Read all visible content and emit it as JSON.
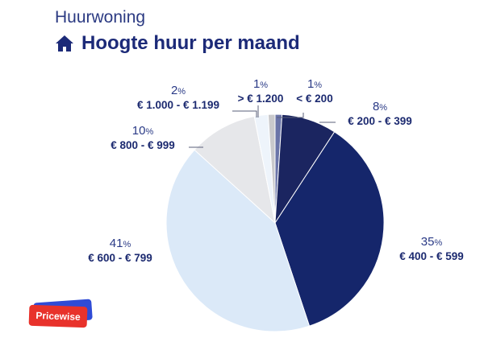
{
  "header": {
    "subtitle": "Huurwoning",
    "title": "Hoogte huur per maand",
    "icon": "home-icon"
  },
  "brand": {
    "logo_text": "Pricewise"
  },
  "colors": {
    "title": "#1c2a78",
    "slices": [
      "#6a74a8",
      "#1b2560",
      "#15266b",
      "#dbe9f8",
      "#e6e7ea",
      "#eef4fb",
      "#c9c9cc"
    ]
  },
  "chart_data": {
    "type": "pie",
    "title": "Hoogte huur per maand",
    "slices": [
      {
        "label": "< € 200",
        "value": 1,
        "pct_text": "1"
      },
      {
        "label": "€ 200 - € 399",
        "value": 8,
        "pct_text": "8"
      },
      {
        "label": "€ 400 - € 599",
        "value": 35,
        "pct_text": "35"
      },
      {
        "label": "€ 600 - € 799",
        "value": 41,
        "pct_text": "41"
      },
      {
        "label": "€ 800 - € 999",
        "value": 10,
        "pct_text": "10"
      },
      {
        "label": "€ 1.000 - € 1.199",
        "value": 2,
        "pct_text": "2"
      },
      {
        "label": "> € 1.200",
        "value": 1,
        "pct_text": "1"
      }
    ],
    "unit": "%"
  }
}
